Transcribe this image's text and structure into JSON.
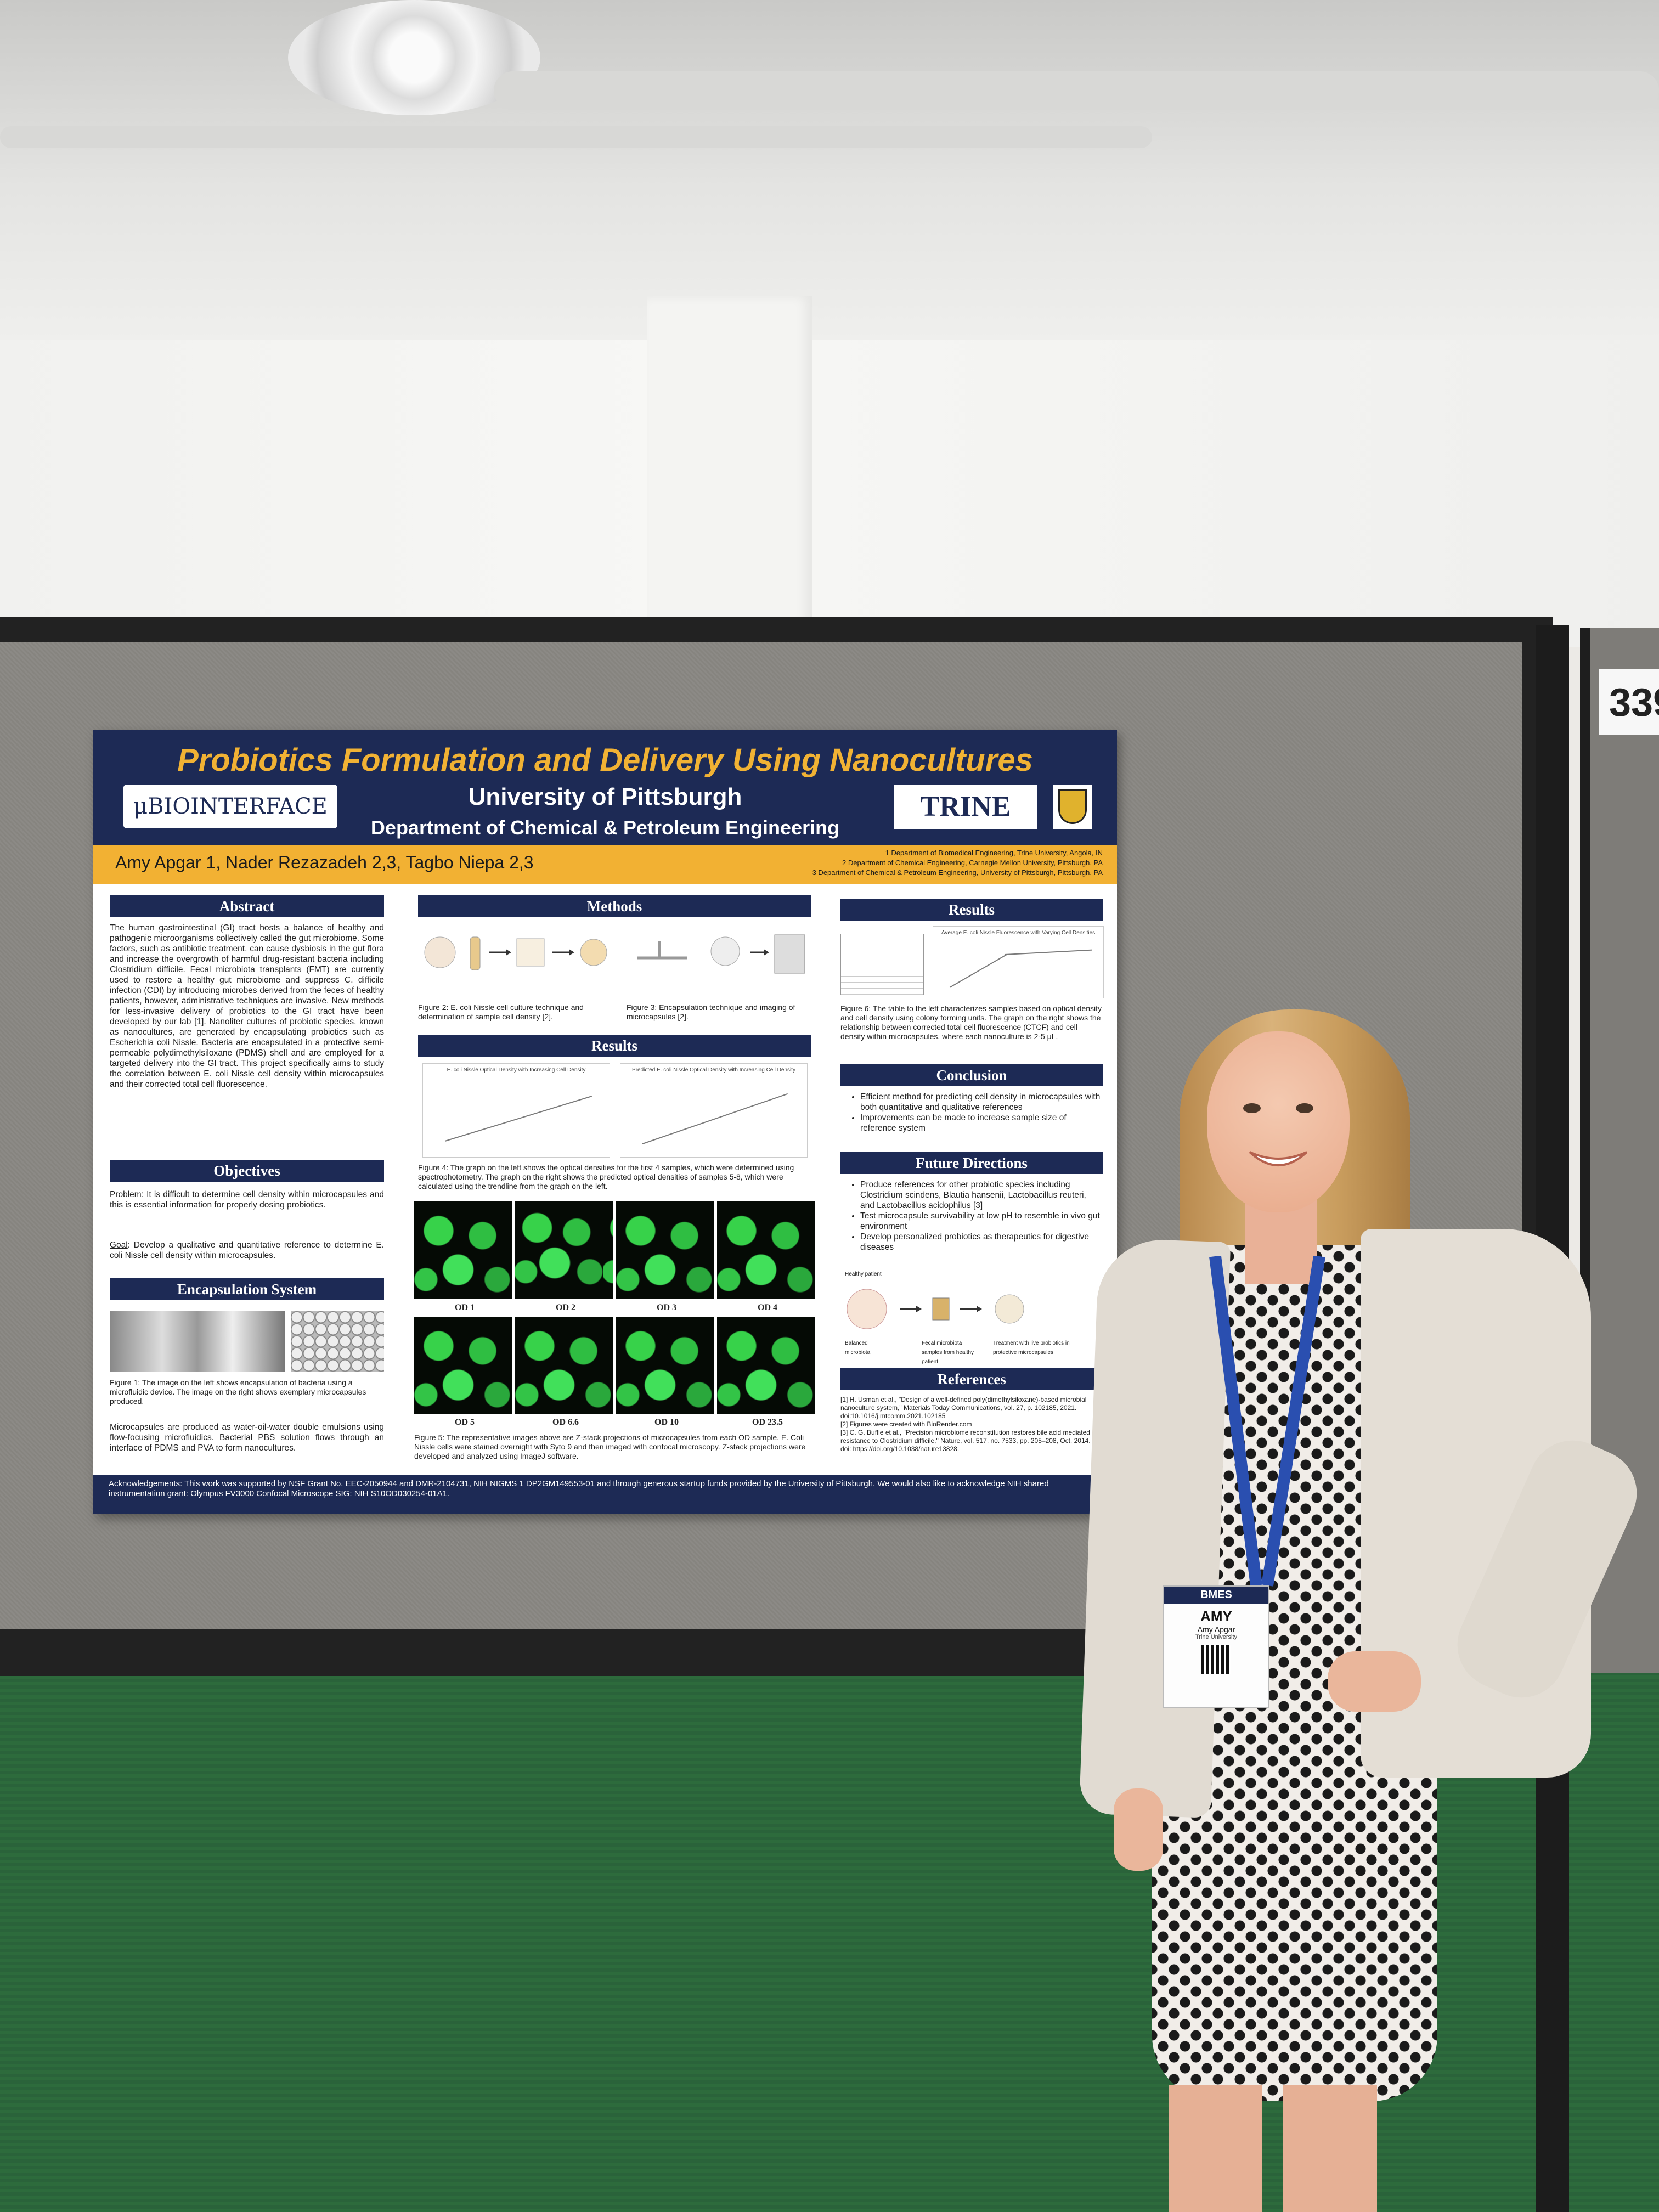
{
  "booth": {
    "number": "339"
  },
  "poster": {
    "title": "Probiotics Formulation and Delivery Using Nanocultures",
    "university": "University of Pittsburgh",
    "department": "Department of Chemical & Petroleum Engineering",
    "logos": {
      "left": "μBIOINTERFACE",
      "right": "TRINE"
    },
    "authors": "Amy Apgar 1, Nader Rezazadeh 2,3, Tagbo Niepa 2,3",
    "affiliations": [
      "1 Department of Biomedical Engineering, Trine University, Angola, IN",
      "2 Department of Chemical Engineering, Carnegie Mellon University, Pittsburgh, PA",
      "3 Department of Chemical & Petroleum Engineering, University of Pittsburgh, Pittsburgh, PA"
    ],
    "abstract": {
      "heading": "Abstract",
      "text": "The human gastrointestinal (GI) tract hosts a balance of healthy and pathogenic microorganisms collectively called the gut microbiome. Some factors, such as antibiotic treatment, can cause dysbiosis in the gut flora and increase the overgrowth of harmful drug-resistant bacteria including Clostridium difficile. Fecal microbiota transplants (FMT) are currently used to restore a healthy gut microbiome and suppress C. difficile infection (CDI) by introducing microbes derived from the feces of healthy patients, however, administrative techniques are invasive. New methods for less-invasive delivery of probiotics to the GI tract have been developed by our lab [1]. Nanoliter cultures of probiotic species, known as nanocultures, are generated by encapsulating probiotics such as Escherichia coli Nissle. Bacteria are encapsulated in a protective semi-permeable polydimethylsiloxane (PDMS) shell and are employed for a targeted delivery into the GI tract. This project specifically aims to study the correlation between E. coli Nissle cell density within microcapsules and their corrected total cell fluorescence."
    },
    "objectives": {
      "heading": "Objectives",
      "problem_label": "Problem",
      "problem": ": It is difficult to determine cell density within microcapsules and this is essential information for properly dosing probiotics.",
      "goal_label": "Goal",
      "goal": ": Develop a qualitative and quantitative reference to determine E. coli Nissle cell density within microcapsules."
    },
    "encapsulation": {
      "heading": "Encapsulation System",
      "caption": "Figure 1: The image on the left shows encapsulation of bacteria using a microfluidic device. The image on the right shows exemplary microcapsules produced.",
      "text": "Microcapsules are produced as water-oil-water double emulsions using flow-focusing microfluidics. Bacterial PBS solution flows through an interface of PDMS and PVA to form nanocultures."
    },
    "methods": {
      "heading": "Methods",
      "fig2": "Figure 2: E. coli Nissle cell culture technique and determination of sample cell density [2].",
      "fig3": "Figure 3: Encapsulation technique and imaging of microcapsules [2]."
    },
    "results_mid": {
      "heading": "Results",
      "plot_left_title": "E. coli Nissle Optical Density with Increasing Cell Density",
      "plot_right_title": "Predicted E. coli Nissle Optical Density with Increasing Cell Density",
      "fig4": "Figure 4: The graph on the left shows the optical densities for the first 4 samples, which were determined using spectrophotometry. The graph on the right shows the predicted optical densities of samples 5-8, which were calculated using the trendline from the graph on the left.",
      "od_top": [
        "OD 1",
        "OD 2",
        "OD 3",
        "OD 4"
      ],
      "od_bottom": [
        "OD 5",
        "OD 6.6",
        "OD 10",
        "OD 23.5"
      ],
      "fig5": "Figure 5: The representative images above are Z-stack projections of microcapsules from each OD sample. E. Coli Nissle cells were stained overnight with Syto 9 and then imaged with confocal microscopy. Z-stack projections were developed and analyzed using ImageJ software."
    },
    "results_right": {
      "heading": "Results",
      "plot_title": "Average E. coli Nissle Fluorescence with Varying Cell Densities",
      "fig6": "Figure 6: The table to the left characterizes samples based on optical density and cell density using colony forming units. The graph on the right shows the relationship between corrected total cell fluorescence (CTCF) and cell density within microcapsules, where each nanoculture is 2-5 μL."
    },
    "conclusion": {
      "heading": "Conclusion",
      "items": [
        "Efficient method for predicting cell density in microcapsules with both quantitative and qualitative references",
        "Improvements can be made to increase sample size of reference system"
      ]
    },
    "future": {
      "heading": "Future Directions",
      "items": [
        "Produce references for other probiotic species including Clostridium scindens, Blautia hansenii, Lactobacillus reuteri, and Lactobacillus acidophilus [3]",
        "Test microcapsule survivability at low pH to resemble in vivo gut environment",
        "Develop personalized probiotics as therapeutics for digestive diseases"
      ],
      "diagram_labels": [
        "Healthy patient",
        "Balanced microbiota",
        "Fecal microbiota samples from healthy patient",
        "Treatment with live probiotics in protective microcapsules"
      ]
    },
    "references": {
      "heading": "References",
      "items": [
        "[1] H. Usman et al., \"Design of a well-defined poly(dimethylsiloxane)-based microbial nanoculture system,\" Materials Today Communications, vol. 27, p. 102185, 2021. doi:10.1016/j.mtcomm.2021.102185",
        "[2] Figures were created with BioRender.com",
        "[3] C. G. Buffie et al., \"Precision microbiome reconstitution restores bile acid mediated resistance to Clostridium difficile,\" Nature, vol. 517, no. 7533, pp. 205–208, Oct. 2014. doi: https://doi.org/10.1038/nature13828."
      ]
    },
    "acknowledgements": "Acknowledgements: This work was supported by NSF Grant No. EEC-2050944 and DMR-2104731, NIH NIGMS 1 DP2GM149553-01 and through generous startup funds provided by the University of Pittsburgh. We would also like to acknowledge NIH shared instrumentation grant: Olympus FV3000 Confocal Microscope SIG: NIH S10OD030254-01A1."
  },
  "badge": {
    "org": "BMES",
    "first_name": "AMY",
    "full_name": "Amy Apgar",
    "school": "Trine University"
  },
  "colors": {
    "poster_navy": "#1d2a55",
    "poster_gold": "#f2b133",
    "carpet": "#2d6b3c"
  }
}
